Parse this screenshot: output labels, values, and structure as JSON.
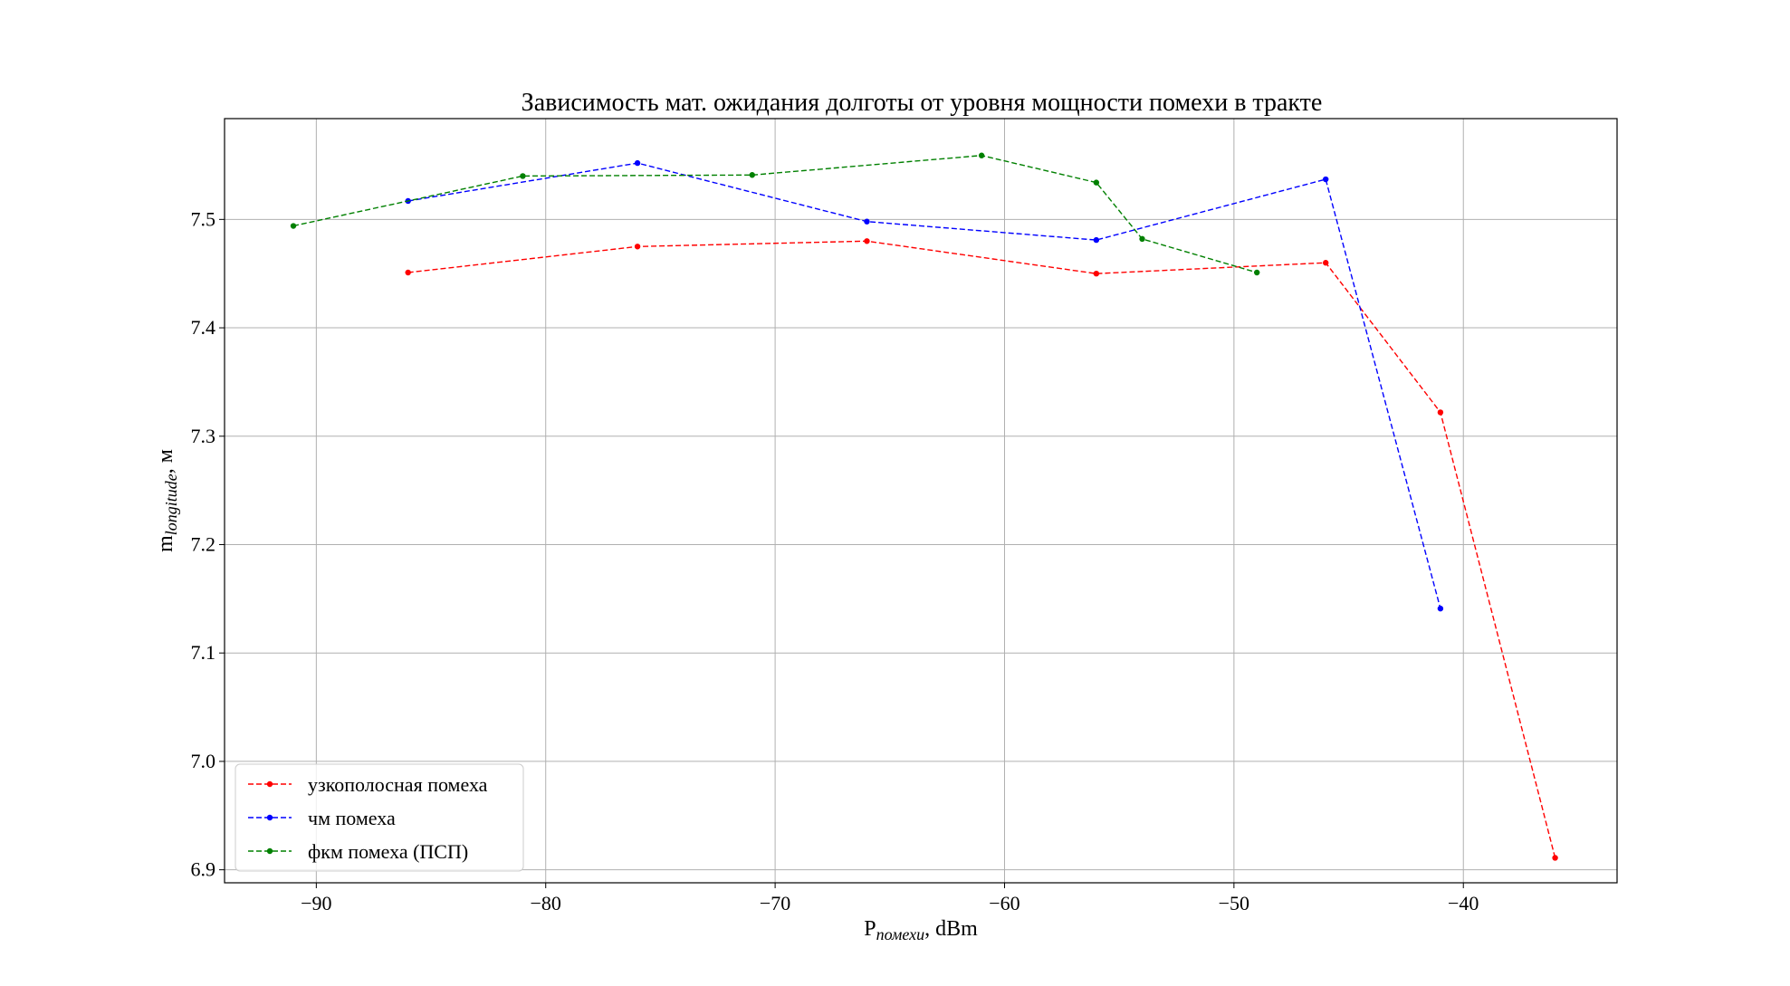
{
  "chart_data": {
    "type": "line",
    "title": "Зависимость мат. ожидания долготы от уровня мощности помехи в тракте",
    "xlabel": {
      "base": "P",
      "sub": "помехи",
      "tail": ", dBm"
    },
    "ylabel": {
      "base": "m",
      "sub": "longitude",
      "tail": ", м"
    },
    "xlim": [
      -94,
      -33.3
    ],
    "ylim": [
      6.888,
      7.593
    ],
    "xticks": [
      -90,
      -80,
      -70,
      -60,
      -50,
      -40
    ],
    "xtick_labels": [
      "−90",
      "−80",
      "−70",
      "−60",
      "−50",
      "−40"
    ],
    "yticks": [
      6.9,
      7.0,
      7.1,
      7.2,
      7.3,
      7.4,
      7.5
    ],
    "ytick_labels": [
      "6.9",
      "7.0",
      "7.1",
      "7.2",
      "7.3",
      "7.4",
      "7.5"
    ],
    "grid": true,
    "legend_position": "lower-left",
    "line_style": "dashed",
    "series": [
      {
        "name": "узкополосная помеха",
        "color": "#ff0000",
        "x": [
          -86,
          -76,
          -66,
          -56,
          -46,
          -41,
          -36
        ],
        "y": [
          7.451,
          7.475,
          7.48,
          7.45,
          7.46,
          7.322,
          6.911
        ]
      },
      {
        "name": "чм помеха",
        "color": "#0000ff",
        "x": [
          -86,
          -76,
          -66,
          -56,
          -46,
          -41
        ],
        "y": [
          7.517,
          7.552,
          7.498,
          7.481,
          7.537,
          7.141
        ]
      },
      {
        "name": "фкм помеха (ПСП)",
        "color": "#008000",
        "x": [
          -91,
          -81,
          -71,
          -61,
          -56,
          -54,
          -49
        ],
        "y": [
          7.494,
          7.54,
          7.541,
          7.559,
          7.534,
          7.482,
          7.451
        ]
      }
    ]
  }
}
